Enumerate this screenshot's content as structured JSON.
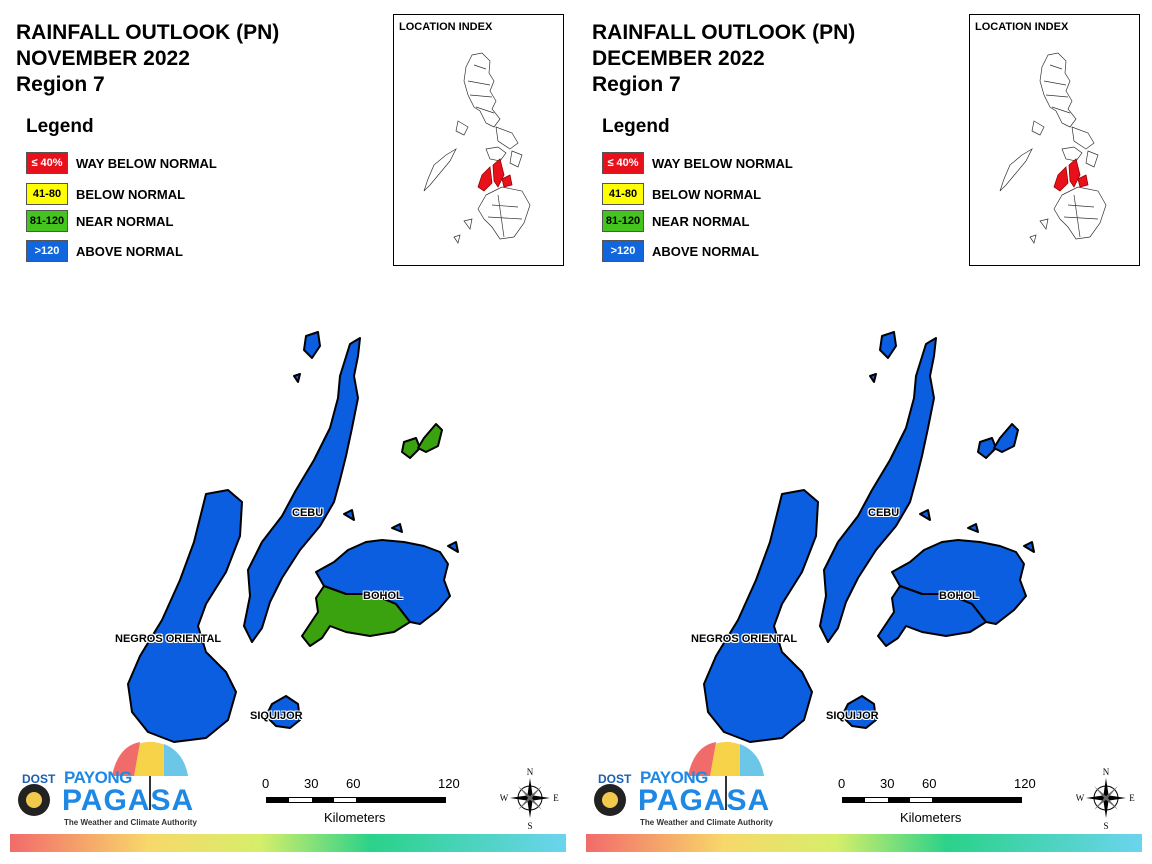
{
  "colors": {
    "way_below": "#e8111b",
    "below": "#ffff00",
    "near": "#3aa10f",
    "above": "#0b5ee0"
  },
  "legend_title": "Legend",
  "legend": [
    {
      "code": "≤ 40%",
      "label": "WAY BELOW NORMAL",
      "color": "#e8111b",
      "text_color": "#ffffff"
    },
    {
      "code": "41-80",
      "label": "BELOW NORMAL",
      "color": "#ffff00",
      "text_color": "#000000"
    },
    {
      "code": "81-120",
      "label": "NEAR NORMAL",
      "color": "#44c41e",
      "text_color": "#000000"
    },
    {
      "code": ">120",
      "label": "ABOVE NORMAL",
      "color": "#1166dd",
      "text_color": "#ffffff"
    }
  ],
  "location_index_title": "LOCATION INDEX",
  "scale": {
    "ticks": [
      "0",
      "30",
      "60",
      "120"
    ],
    "unit": "Kilometers"
  },
  "compass": {
    "n": "N",
    "s": "S",
    "e": "E",
    "w": "W"
  },
  "logo": {
    "dost": "DOST",
    "payong": "PAYONG",
    "pagasa": "PAGASA",
    "tagline": "The Weather and Climate Authority"
  },
  "panels": [
    {
      "title_line1": "RAINFALL OUTLOOK (PN)",
      "title_line2": "NOVEMBER 2022",
      "title_line3": "Region 7",
      "places": {
        "cebu": "CEBU",
        "bohol": "BOHOL",
        "negros": "NEGROS ORIENTAL",
        "siquijor": "SIQUIJOR"
      },
      "region_categories": {
        "cebu": "above",
        "bohol_north": "above",
        "bohol_south": "near",
        "camotes": "near",
        "negros": "above",
        "siquijor": "above"
      }
    },
    {
      "title_line1": "RAINFALL OUTLOOK (PN)",
      "title_line2": "DECEMBER 2022",
      "title_line3": "Region 7",
      "places": {
        "cebu": "CEBU",
        "bohol": "BOHOL",
        "negros": "NEGROS ORIENTAL",
        "siquijor": "SIQUIJOR"
      },
      "region_categories": {
        "cebu": "above",
        "bohol_north": "above",
        "bohol_south": "above",
        "camotes": "above",
        "negros": "above",
        "siquijor": "above"
      }
    }
  ]
}
